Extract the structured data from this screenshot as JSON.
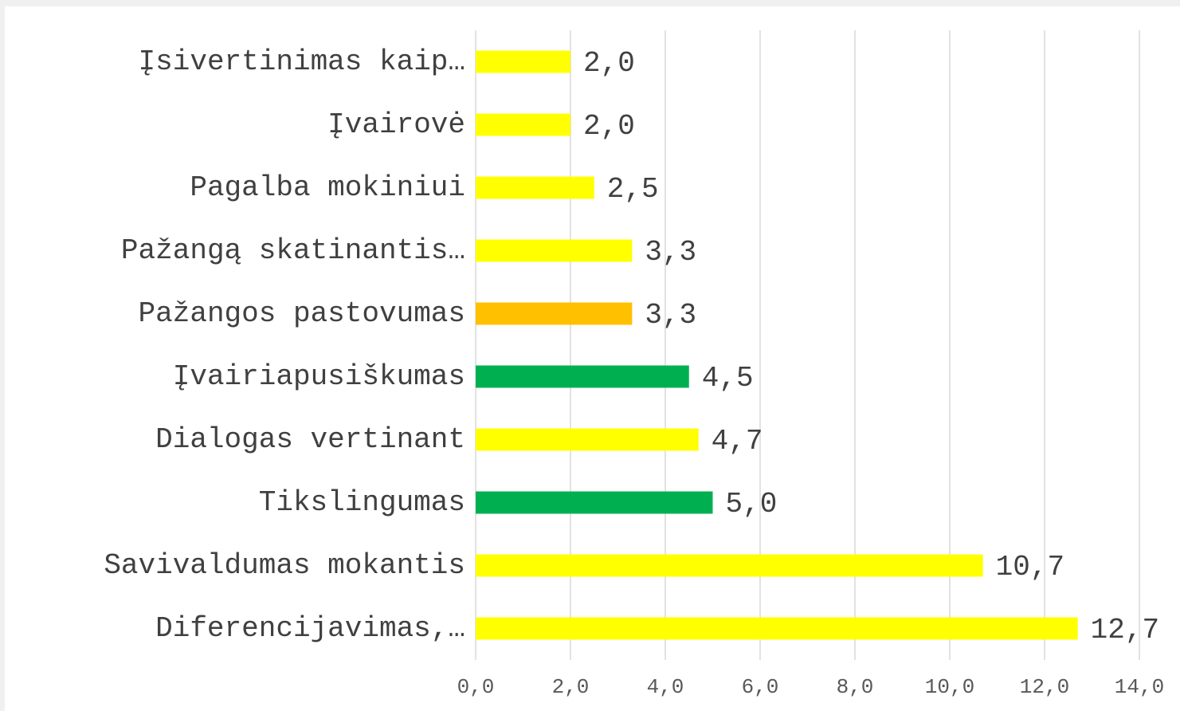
{
  "chart_data": {
    "type": "bar",
    "orientation": "horizontal",
    "categories": [
      "Įsivertinimas kaip…",
      "Įvairovė",
      "Pagalba mokiniui",
      "Pažangą skatinantis…",
      "Pažangos pastovumas",
      "Įvairiapusiškumas",
      "Dialogas vertinant",
      "Tikslingumas",
      "Savivaldumas mokantis",
      "Diferencijavimas,…"
    ],
    "values": [
      2.0,
      2.0,
      2.5,
      3.3,
      3.3,
      4.5,
      4.7,
      5.0,
      10.7,
      12.7
    ],
    "value_labels": [
      "2,0",
      "2,0",
      "2,5",
      "3,3",
      "3,3",
      "4,5",
      "4,7",
      "5,0",
      "10,7",
      "12,7"
    ],
    "colors": [
      "#ffff00",
      "#ffff00",
      "#ffff00",
      "#ffff00",
      "#ffc000",
      "#00b050",
      "#ffff00",
      "#00b050",
      "#ffff00",
      "#ffff00"
    ],
    "xlim": [
      0,
      14
    ],
    "xticks": [
      {
        "value": 0,
        "label": "0,0"
      },
      {
        "value": 2,
        "label": "2,0"
      },
      {
        "value": 4,
        "label": "4,0"
      },
      {
        "value": 6,
        "label": "6,0"
      },
      {
        "value": 8,
        "label": "8,0"
      },
      {
        "value": 10,
        "label": "10,0"
      },
      {
        "value": 12,
        "label": "12,0"
      },
      {
        "value": 14,
        "label": "14,0"
      }
    ],
    "grid": true
  }
}
